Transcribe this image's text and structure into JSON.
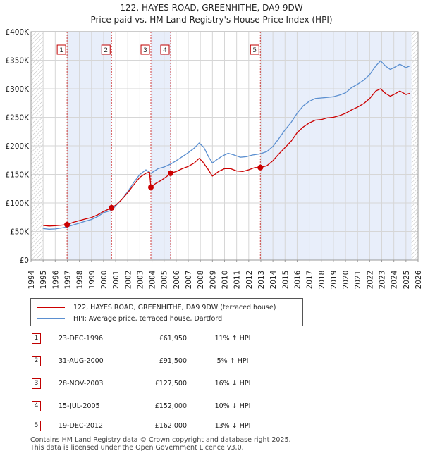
{
  "chart_data": {
    "type": "line",
    "title": "122, HAYES ROAD, GREENHITHE, DA9 9DW",
    "subtitle": "Price paid vs. HM Land Registry's House Price Index (HPI)",
    "xlim": [
      1994,
      2026
    ],
    "ylim": [
      0,
      400000
    ],
    "y_ticks": [
      {
        "value": 0,
        "label": "£0"
      },
      {
        "value": 50000,
        "label": "£50K"
      },
      {
        "value": 100000,
        "label": "£100K"
      },
      {
        "value": 150000,
        "label": "£150K"
      },
      {
        "value": 200000,
        "label": "£200K"
      },
      {
        "value": 250000,
        "label": "£250K"
      },
      {
        "value": 300000,
        "label": "£300K"
      },
      {
        "value": 350000,
        "label": "£350K"
      },
      {
        "value": 400000,
        "label": "£400K"
      }
    ],
    "x_ticks": [
      "1994",
      "1995",
      "1996",
      "1997",
      "1998",
      "1999",
      "2000",
      "2001",
      "2002",
      "2003",
      "2004",
      "2005",
      "2006",
      "2007",
      "2008",
      "2009",
      "2010",
      "2011",
      "2012",
      "2013",
      "2014",
      "2015",
      "2016",
      "2017",
      "2018",
      "2019",
      "2020",
      "2021",
      "2022",
      "2023",
      "2024",
      "2025",
      "2026"
    ],
    "series": [
      {
        "name": "122, HAYES ROAD, GREENHITHE, DA9 9DW (terraced house)",
        "color": "#cc0000",
        "points": [
          [
            1995.0,
            60500
          ],
          [
            1995.5,
            59500
          ],
          [
            1996.0,
            60000
          ],
          [
            1996.5,
            61000
          ],
          [
            1996.98,
            61950
          ],
          [
            1997.5,
            66000
          ],
          [
            1998.0,
            69000
          ],
          [
            1998.5,
            72000
          ],
          [
            1999.0,
            74500
          ],
          [
            1999.5,
            79000
          ],
          [
            2000.0,
            85000
          ],
          [
            2000.66,
            91500
          ],
          [
            2001.0,
            96000
          ],
          [
            2001.5,
            106000
          ],
          [
            2002.0,
            118000
          ],
          [
            2002.5,
            132000
          ],
          [
            2003.0,
            145000
          ],
          [
            2003.5,
            152000
          ],
          [
            2003.8,
            154000
          ],
          [
            2003.91,
            127500
          ],
          [
            2004.3,
            134000
          ],
          [
            2004.8,
            140000
          ],
          [
            2005.2,
            146000
          ],
          [
            2005.54,
            152000
          ],
          [
            2006.0,
            155000
          ],
          [
            2006.5,
            160000
          ],
          [
            2007.0,
            164000
          ],
          [
            2007.5,
            170000
          ],
          [
            2007.9,
            178000
          ],
          [
            2008.2,
            172000
          ],
          [
            2008.6,
            160000
          ],
          [
            2009.0,
            147000
          ],
          [
            2009.2,
            150000
          ],
          [
            2009.5,
            155000
          ],
          [
            2010.0,
            160000
          ],
          [
            2010.5,
            160000
          ],
          [
            2011.0,
            156000
          ],
          [
            2011.5,
            155000
          ],
          [
            2012.0,
            158000
          ],
          [
            2012.5,
            162000
          ],
          [
            2012.96,
            162000
          ],
          [
            2013.5,
            165000
          ],
          [
            2014.0,
            174000
          ],
          [
            2014.5,
            186000
          ],
          [
            2015.0,
            197000
          ],
          [
            2015.5,
            208000
          ],
          [
            2016.0,
            223000
          ],
          [
            2016.5,
            233000
          ],
          [
            2017.0,
            240000
          ],
          [
            2017.5,
            245000
          ],
          [
            2018.0,
            246000
          ],
          [
            2018.5,
            249000
          ],
          [
            2019.0,
            250000
          ],
          [
            2019.5,
            253000
          ],
          [
            2020.0,
            257000
          ],
          [
            2020.5,
            263000
          ],
          [
            2021.0,
            268000
          ],
          [
            2021.5,
            274000
          ],
          [
            2022.0,
            283000
          ],
          [
            2022.5,
            296000
          ],
          [
            2022.9,
            300000
          ],
          [
            2023.3,
            292000
          ],
          [
            2023.7,
            287000
          ],
          [
            2024.0,
            290000
          ],
          [
            2024.5,
            296000
          ],
          [
            2025.0,
            290000
          ],
          [
            2025.3,
            292000
          ]
        ]
      },
      {
        "name": "HPI: Average price, terraced house, Dartford",
        "color": "#5b8fd0",
        "points": [
          [
            1995.0,
            55000
          ],
          [
            1995.5,
            54000
          ],
          [
            1996.0,
            54500
          ],
          [
            1996.5,
            56000
          ],
          [
            1997.0,
            58000
          ],
          [
            1997.5,
            61500
          ],
          [
            1998.0,
            64500
          ],
          [
            1998.5,
            68000
          ],
          [
            1999.0,
            71000
          ],
          [
            1999.5,
            76000
          ],
          [
            2000.0,
            83000
          ],
          [
            2000.66,
            87000
          ],
          [
            2001.0,
            95000
          ],
          [
            2001.5,
            106000
          ],
          [
            2002.0,
            120000
          ],
          [
            2002.5,
            136000
          ],
          [
            2003.0,
            150000
          ],
          [
            2003.5,
            158000
          ],
          [
            2003.91,
            152000
          ],
          [
            2004.5,
            160000
          ],
          [
            2005.0,
            163000
          ],
          [
            2005.54,
            168000
          ],
          [
            2006.0,
            174000
          ],
          [
            2006.5,
            181000
          ],
          [
            2007.0,
            188000
          ],
          [
            2007.5,
            196000
          ],
          [
            2007.9,
            205000
          ],
          [
            2008.3,
            197000
          ],
          [
            2008.7,
            180000
          ],
          [
            2009.0,
            170000
          ],
          [
            2009.3,
            175000
          ],
          [
            2009.8,
            182000
          ],
          [
            2010.3,
            187000
          ],
          [
            2010.8,
            184000
          ],
          [
            2011.3,
            180000
          ],
          [
            2011.8,
            181000
          ],
          [
            2012.3,
            184000
          ],
          [
            2012.96,
            186000
          ],
          [
            2013.5,
            190000
          ],
          [
            2014.0,
            199000
          ],
          [
            2014.5,
            213000
          ],
          [
            2015.0,
            228000
          ],
          [
            2015.5,
            241000
          ],
          [
            2016.0,
            257000
          ],
          [
            2016.5,
            270000
          ],
          [
            2017.0,
            278000
          ],
          [
            2017.5,
            283000
          ],
          [
            2018.0,
            284000
          ],
          [
            2018.5,
            285000
          ],
          [
            2019.0,
            286000
          ],
          [
            2019.5,
            289000
          ],
          [
            2020.0,
            293000
          ],
          [
            2020.5,
            302000
          ],
          [
            2021.0,
            308000
          ],
          [
            2021.5,
            315000
          ],
          [
            2022.0,
            325000
          ],
          [
            2022.5,
            340000
          ],
          [
            2022.9,
            349000
          ],
          [
            2023.3,
            340000
          ],
          [
            2023.7,
            334000
          ],
          [
            2024.0,
            337000
          ],
          [
            2024.5,
            343000
          ],
          [
            2025.0,
            337000
          ],
          [
            2025.3,
            340000
          ]
        ]
      }
    ],
    "sales": [
      {
        "num": "1",
        "x": 1996.98,
        "price": 61950
      },
      {
        "num": "2",
        "x": 2000.66,
        "price": 91500
      },
      {
        "num": "3",
        "x": 2003.91,
        "price": 127500
      },
      {
        "num": "4",
        "x": 2005.54,
        "price": 152000
      },
      {
        "num": "5",
        "x": 2012.96,
        "price": 162000
      }
    ],
    "shaded_spans": [
      [
        1996.98,
        2000.66
      ],
      [
        2003.91,
        2005.54
      ],
      [
        2012.96,
        2025.45
      ]
    ],
    "hatched_spans": [
      [
        1994,
        1995.0
      ],
      [
        2025.45,
        2026
      ]
    ]
  },
  "legend": {
    "property_label": "122, HAYES ROAD, GREENHITHE, DA9 9DW (terraced house)",
    "hpi_label": "HPI: Average price, terraced house, Dartford",
    "property_color": "#cc0000",
    "hpi_color": "#5b8fd0"
  },
  "sales_table": [
    {
      "num": "1",
      "date": "23-DEC-1996",
      "price": "£61,950",
      "hpi": "11% ↑ HPI"
    },
    {
      "num": "2",
      "date": "31-AUG-2000",
      "price": "£91,500",
      "hpi": "5% ↑ HPI"
    },
    {
      "num": "3",
      "date": "28-NOV-2003",
      "price": "£127,500",
      "hpi": "16% ↓ HPI"
    },
    {
      "num": "4",
      "date": "15-JUL-2005",
      "price": "£152,000",
      "hpi": "10% ↓ HPI"
    },
    {
      "num": "5",
      "date": "19-DEC-2012",
      "price": "£162,000",
      "hpi": "13% ↓ HPI"
    }
  ],
  "footer": {
    "line1": "Contains HM Land Registry data © Crown copyright and database right 2025.",
    "line2": "This data is licensed under the Open Government Licence v3.0."
  }
}
